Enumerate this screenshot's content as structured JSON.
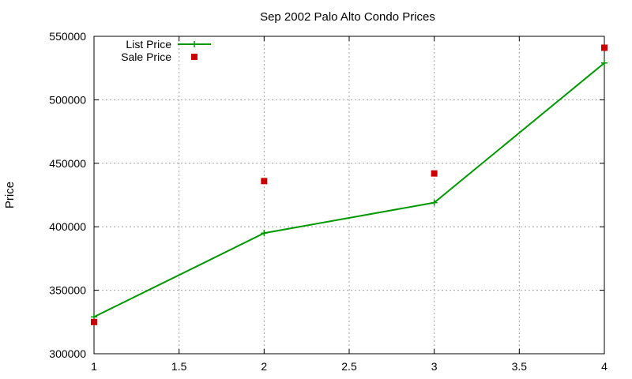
{
  "chart_data": {
    "type": "line",
    "title": "Sep 2002 Palo Alto Condo Prices",
    "xlabel": "",
    "ylabel": "Price",
    "xlim": [
      1,
      4
    ],
    "ylim": [
      300000,
      550000
    ],
    "x_ticks": [
      "1",
      "1.5",
      "2",
      "2.5",
      "3",
      "3.5",
      "4"
    ],
    "y_ticks": [
      "300000",
      "350000",
      "400000",
      "450000",
      "500000",
      "550000"
    ],
    "grid": true,
    "legend_position": "top-left",
    "series": [
      {
        "name": "List Price",
        "style": "line+points",
        "color": "#009900",
        "marker": "plus",
        "x": [
          1,
          2,
          3,
          4
        ],
        "y": [
          329000,
          395000,
          419000,
          529000
        ]
      },
      {
        "name": "Sale Price",
        "style": "points",
        "color": "#cc0000",
        "marker": "square",
        "x": [
          1,
          2,
          3,
          4
        ],
        "y": [
          325000,
          436000,
          442000,
          541000
        ]
      }
    ]
  }
}
